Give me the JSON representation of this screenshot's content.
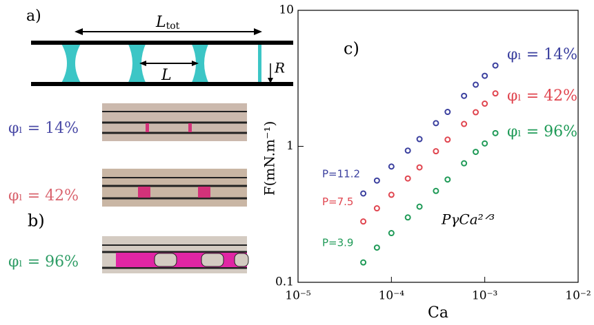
{
  "panel_a": {
    "label": "a)",
    "ltot_main": "L",
    "ltot_sub": "tot",
    "l": "L",
    "r": "R"
  },
  "panel_b": {
    "label": "b)",
    "labels": [
      "φₗ = 14%",
      "φₗ = 42%",
      "φₗ = 96%"
    ]
  },
  "chart_data": {
    "type": "scatter",
    "panel_label": "c)",
    "x_label": "Ca",
    "y_label": "F(mN.m⁻¹)",
    "annotation": "PγCa²ᐟ³",
    "log_x": true,
    "log_y": true,
    "xlim": [
      1e-05,
      0.01
    ],
    "ylim": [
      0.1,
      10
    ],
    "xticks": [
      {
        "value": 1e-05,
        "label": "10⁻⁵"
      },
      {
        "value": 0.0001,
        "label": "10⁻⁴"
      },
      {
        "value": 0.001,
        "label": "10⁻³"
      },
      {
        "value": 0.01,
        "label": "10⁻²"
      }
    ],
    "yticks": [
      0.1,
      1,
      10
    ],
    "x": [
      5e-05,
      7e-05,
      0.0001,
      0.00015,
      0.0002,
      0.0003,
      0.0004,
      0.0006,
      0.0008,
      0.001,
      0.0013
    ],
    "series": [
      {
        "name": "φₗ = 14%",
        "color": "#3a3f9e",
        "p_label": "P=11.2",
        "values": [
          0.45,
          0.56,
          0.71,
          0.93,
          1.13,
          1.48,
          1.79,
          2.35,
          2.84,
          3.3,
          3.93
        ]
      },
      {
        "name": "φₗ = 42%",
        "color": "#e0454f",
        "p_label": "P=7.5",
        "values": [
          0.28,
          0.35,
          0.44,
          0.58,
          0.7,
          0.92,
          1.12,
          1.46,
          1.78,
          2.06,
          2.45
        ]
      },
      {
        "name": "φₗ = 96%",
        "color": "#1f9a57",
        "p_label": "P=3.9",
        "values": [
          0.14,
          0.18,
          0.23,
          0.3,
          0.36,
          0.47,
          0.57,
          0.75,
          0.91,
          1.05,
          1.25
        ]
      }
    ]
  }
}
